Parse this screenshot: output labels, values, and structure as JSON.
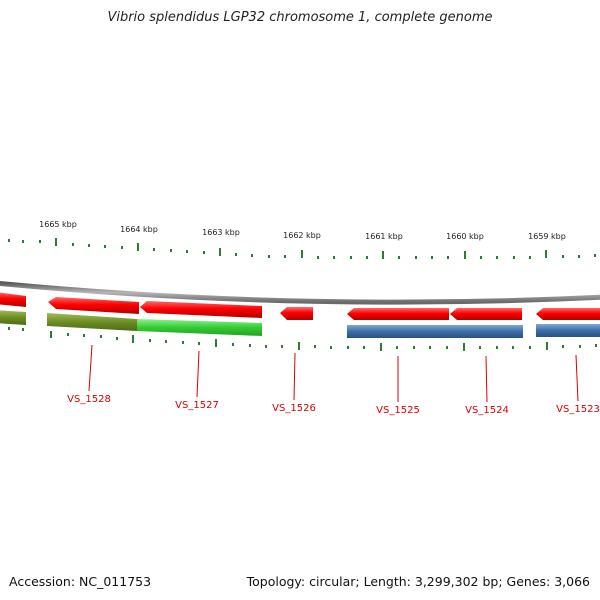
{
  "title": "Vibrio splendidus LGP32 chromosome 1, complete genome",
  "accession": "Accession: NC_011753",
  "topology": "Topology: circular; Length: 3,299,302 bp; Genes: 3,066",
  "coordinate_labels": [
    "1665 kbp",
    "1664 kbp",
    "1663 kbp",
    "1662 kbp",
    "1661 kbp",
    "1660 kbp",
    "1659 kbp"
  ],
  "genes": [
    {
      "label": "VS_1528",
      "color": "#e30000",
      "cds_color": "#6b8e23",
      "strand": "minus"
    },
    {
      "label": "VS_1527",
      "color": "#e30000",
      "cds_color": "#33cc33",
      "strand": "minus"
    },
    {
      "label": "VS_1526",
      "color": "#e30000",
      "strand": "minus"
    },
    {
      "label": "VS_1525",
      "color": "#e30000",
      "cds_color": "#3a6ea5",
      "strand": "minus"
    },
    {
      "label": "VS_1524",
      "color": "#e30000",
      "cds_color": "#3a6ea5",
      "strand": "minus"
    },
    {
      "label": "VS_1523",
      "color": "#e30000",
      "cds_color": "#3a6ea5",
      "strand": "minus"
    }
  ],
  "colors": {
    "backbone": "#8a8a8a",
    "ticks": "#2e7d32",
    "gene_label": "#dd0000",
    "gene": "#e30000"
  }
}
